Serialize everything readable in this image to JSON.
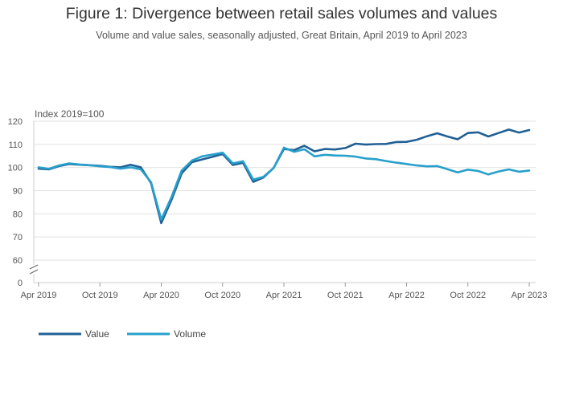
{
  "title": "Figure 1: Divergence between retail sales volumes and values",
  "subtitle": "Volume and value sales, seasonally adjusted, Great Britain, April 2019 to April 2023",
  "chart_data": {
    "type": "line",
    "title": "Figure 1: Divergence between retail sales volumes and values",
    "subtitle": "Volume and value sales, seasonally adjusted, Great Britain, April 2019 to April 2023",
    "ylabel": "Index 2019=100",
    "xlabel": "",
    "ylim": [
      0,
      120
    ],
    "y_axis_break": true,
    "yticks": [
      0,
      60,
      70,
      80,
      90,
      100,
      110,
      120
    ],
    "xtick_labels": [
      "Apr 2019",
      "Oct 2019",
      "Apr 2020",
      "Oct 2020",
      "Apr 2021",
      "Oct 2021",
      "Apr 2022",
      "Oct 2022",
      "Apr 2023"
    ],
    "x": [
      "Apr 2019",
      "May 2019",
      "Jun 2019",
      "Jul 2019",
      "Aug 2019",
      "Sep 2019",
      "Oct 2019",
      "Nov 2019",
      "Dec 2019",
      "Jan 2020",
      "Feb 2020",
      "Mar 2020",
      "Apr 2020",
      "May 2020",
      "Jun 2020",
      "Jul 2020",
      "Aug 2020",
      "Sep 2020",
      "Oct 2020",
      "Nov 2020",
      "Dec 2020",
      "Jan 2021",
      "Feb 2021",
      "Mar 2021",
      "Apr 2021",
      "May 2021",
      "Jun 2021",
      "Jul 2021",
      "Aug 2021",
      "Sep 2021",
      "Oct 2021",
      "Nov 2021",
      "Dec 2021",
      "Jan 2022",
      "Feb 2022",
      "Mar 2022",
      "Apr 2022",
      "May 2022",
      "Jun 2022",
      "Jul 2022",
      "Aug 2022",
      "Sep 2022",
      "Oct 2022",
      "Nov 2022",
      "Dec 2022",
      "Jan 2023",
      "Feb 2023",
      "Mar 2023",
      "Apr 2023"
    ],
    "grid": true,
    "legend_position": "bottom-left",
    "series": [
      {
        "name": "Value",
        "color": "#206095",
        "values": [
          99.5,
          99.2,
          100.6,
          101.5,
          101.2,
          101.0,
          100.7,
          100.3,
          100.1,
          101.2,
          100.1,
          93.3,
          76.0,
          86.0,
          97.5,
          102.3,
          103.5,
          104.6,
          105.8,
          101.1,
          102.0,
          93.8,
          95.7,
          99.9,
          108.0,
          107.5,
          109.4,
          107.0,
          108.0,
          107.8,
          108.4,
          110.3,
          109.9,
          110.1,
          110.2,
          111.0,
          111.1,
          112.0,
          113.5,
          114.8,
          113.4,
          112.2,
          114.9,
          115.2,
          113.4,
          114.9,
          116.4,
          115.1,
          116.2
        ]
      },
      {
        "name": "Volume",
        "color": "#27a0cc",
        "values": [
          100.1,
          99.4,
          100.9,
          101.8,
          101.3,
          101.0,
          100.5,
          100.2,
          99.5,
          100.1,
          99.2,
          93.6,
          77.5,
          87.2,
          98.7,
          103.0,
          104.8,
          105.6,
          106.4,
          101.8,
          102.7,
          94.8,
          96.0,
          99.8,
          108.6,
          106.8,
          107.9,
          104.8,
          105.5,
          105.2,
          105.1,
          104.7,
          103.9,
          103.6,
          102.8,
          102.1,
          101.5,
          100.9,
          100.5,
          100.6,
          99.3,
          97.9,
          99.1,
          98.5,
          97.0,
          98.3,
          99.2,
          98.2,
          98.7
        ]
      }
    ]
  }
}
